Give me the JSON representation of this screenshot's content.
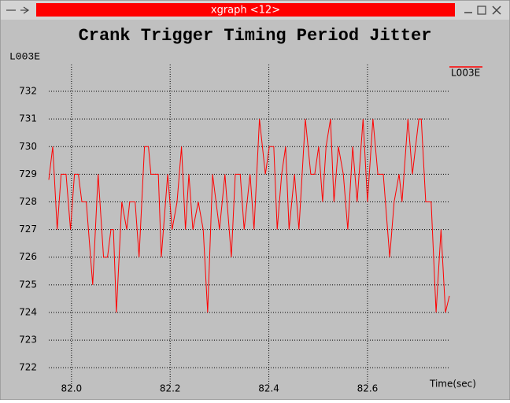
{
  "window": {
    "title": "xgraph <12>"
  },
  "chart_data": {
    "type": "line",
    "title": "Crank Trigger Timing Period Jitter",
    "ylabel": "L003E",
    "xlabel": "Time(sec)",
    "x": [
      81.954,
      81.962,
      81.971,
      81.979,
      81.989,
      81.998,
      82.006,
      82.014,
      82.021,
      82.03,
      82.043,
      82.054,
      82.065,
      82.073,
      82.08,
      82.085,
      82.091,
      82.102,
      82.112,
      82.118,
      82.129,
      82.137,
      82.148,
      82.156,
      82.161,
      82.176,
      82.182,
      82.195,
      82.204,
      82.214,
      82.223,
      82.231,
      82.238,
      82.246,
      82.257,
      82.267,
      82.276,
      82.286,
      82.3,
      82.311,
      82.324,
      82.332,
      82.342,
      82.35,
      82.362,
      82.37,
      82.381,
      82.393,
      82.401,
      82.41,
      82.417,
      82.426,
      82.434,
      82.441,
      82.452,
      82.461,
      82.474,
      82.485,
      82.493,
      82.501,
      82.509,
      82.516,
      82.525,
      82.532,
      82.541,
      82.551,
      82.56,
      82.57,
      82.579,
      82.591,
      82.6,
      82.611,
      82.621,
      82.632,
      82.645,
      82.654,
      82.664,
      82.67,
      82.682,
      82.691,
      82.704,
      82.709,
      82.718,
      82.729,
      82.739,
      82.749,
      82.758,
      82.766
    ],
    "series": [
      {
        "name": "L003E",
        "color": "#ff0000",
        "values": [
          728.8,
          730,
          727,
          729,
          729,
          727,
          729,
          729,
          728,
          728,
          725,
          729,
          726,
          726,
          727,
          727,
          724,
          728,
          727,
          728,
          728,
          726,
          730,
          730,
          729,
          729,
          726,
          729,
          727,
          728,
          730,
          727,
          729,
          727,
          728,
          727,
          724,
          729,
          727,
          729,
          726,
          729,
          729,
          727,
          729,
          727,
          731,
          729,
          730,
          730,
          727,
          729,
          730,
          727,
          729,
          727,
          731,
          729,
          729,
          730,
          728,
          730,
          731,
          728,
          730,
          729,
          727,
          730,
          728,
          731,
          728,
          731,
          729,
          729,
          726,
          728,
          729,
          728,
          731,
          729,
          731,
          731,
          728,
          728,
          724,
          727,
          724,
          724.6
        ]
      }
    ],
    "xlim": [
      81.954,
      82.766
    ],
    "ylim": [
      721.35,
      732.97
    ],
    "xticks": [
      {
        "value": 82,
        "label": "82.0"
      },
      82.2,
      82.4,
      82.6
    ],
    "yticks": [
      722,
      723,
      724,
      725,
      726,
      727,
      728,
      729,
      730,
      731,
      732
    ],
    "grid": true,
    "legend": "top-right"
  }
}
